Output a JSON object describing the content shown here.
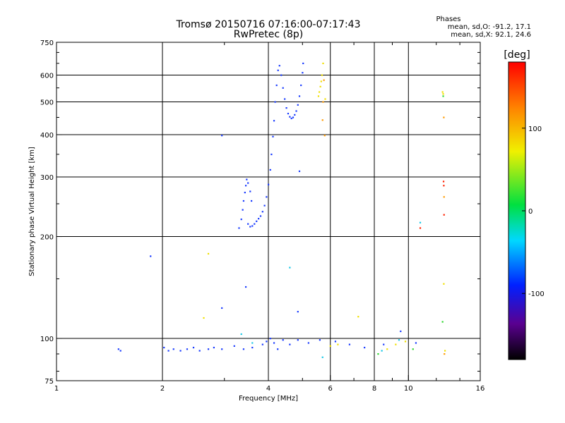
{
  "header": {
    "title_line1": "Tromsø 20150716 07:16:00-07:17:43",
    "title_line2": "RwPretec (8p)",
    "phase_label": "Phases",
    "phase_o": "mean, sd,O: -91.2, 17.1",
    "phase_x": "mean, sd,X:  92.1, 24.6"
  },
  "colors": {
    "axis": "#000000",
    "background": "#ffffff",
    "blue_trace": "#1a3cff",
    "yellow_trace": "#f0e000",
    "orange_trace": "#ff9a00",
    "red_trace": "#ff2000"
  },
  "chart_data": {
    "type": "scatter",
    "xlabel": "Frequency [MHz]",
    "ylabel": "Stationary phase Virtual Height [km]",
    "xscale": "log",
    "yscale": "log",
    "xlim": [
      1,
      16
    ],
    "ylim": [
      75,
      750
    ],
    "xticks": [
      1,
      2,
      4,
      6,
      8,
      10,
      16
    ],
    "xtick_labels": [
      "1",
      "2",
      "4",
      "6",
      "8",
      "10",
      "16"
    ],
    "yticks": [
      75,
      100,
      200,
      300,
      400,
      500,
      600,
      750
    ],
    "ytick_labels": [
      "75",
      "100",
      "200",
      "300",
      "400",
      "500",
      "600",
      "750"
    ],
    "grid": true,
    "colorbar": {
      "label": "[deg]",
      "range": [
        -180,
        180
      ],
      "ticks": [
        100,
        0,
        -100
      ],
      "tick_labels": [
        "100",
        "0",
        "-100"
      ]
    },
    "series": [
      {
        "color": "#1a3cff",
        "points": [
          [
            1.5,
            93
          ],
          [
            1.52,
            92
          ],
          [
            2.02,
            94
          ],
          [
            2.08,
            92
          ],
          [
            2.15,
            93
          ],
          [
            2.25,
            92
          ],
          [
            2.35,
            93
          ],
          [
            2.45,
            94
          ],
          [
            2.55,
            92
          ],
          [
            2.7,
            93
          ],
          [
            2.8,
            94
          ],
          [
            2.95,
            93
          ],
          [
            3.2,
            95
          ],
          [
            3.4,
            93
          ],
          [
            3.6,
            94
          ],
          [
            3.85,
            96
          ],
          [
            3.95,
            98
          ],
          [
            4.05,
            100
          ],
          [
            4.15,
            97
          ],
          [
            4.25,
            93
          ],
          [
            4.4,
            99
          ],
          [
            4.6,
            96
          ],
          [
            4.85,
            99
          ],
          [
            5.2,
            97
          ],
          [
            5.6,
            99
          ],
          [
            6.2,
            98
          ],
          [
            6.8,
            96
          ],
          [
            7.5,
            94
          ],
          [
            8.5,
            96
          ],
          [
            9.5,
            105
          ],
          [
            10.5,
            97
          ],
          [
            1.85,
            175
          ],
          [
            2.95,
            123
          ],
          [
            3.45,
            142
          ],
          [
            4.85,
            120
          ],
          [
            4.9,
            312
          ],
          [
            2.95,
            398
          ],
          [
            3.3,
            212
          ],
          [
            3.35,
            225
          ],
          [
            3.38,
            240
          ],
          [
            3.4,
            255
          ],
          [
            3.43,
            270
          ],
          [
            3.45,
            283
          ],
          [
            3.47,
            295
          ],
          [
            3.5,
            288
          ],
          [
            3.55,
            272
          ],
          [
            3.58,
            255
          ],
          [
            3.5,
            218
          ],
          [
            3.55,
            214
          ],
          [
            3.6,
            215
          ],
          [
            3.65,
            218
          ],
          [
            3.7,
            222
          ],
          [
            3.75,
            226
          ],
          [
            3.8,
            230
          ],
          [
            3.85,
            237
          ],
          [
            3.9,
            247
          ],
          [
            3.95,
            262
          ],
          [
            4.0,
            285
          ],
          [
            4.05,
            315
          ],
          [
            4.08,
            350
          ],
          [
            4.12,
            395
          ],
          [
            4.15,
            440
          ],
          [
            4.18,
            500
          ],
          [
            4.22,
            560
          ],
          [
            4.26,
            620
          ],
          [
            4.3,
            640
          ],
          [
            4.35,
            600
          ],
          [
            4.4,
            550
          ],
          [
            4.45,
            510
          ],
          [
            4.5,
            480
          ],
          [
            4.55,
            462
          ],
          [
            4.6,
            452
          ],
          [
            4.65,
            447
          ],
          [
            4.7,
            450
          ],
          [
            4.75,
            458
          ],
          [
            4.8,
            470
          ],
          [
            4.85,
            490
          ],
          [
            4.9,
            520
          ],
          [
            4.95,
            560
          ],
          [
            5.0,
            610
          ],
          [
            5.02,
            650
          ]
        ]
      },
      {
        "color": "#19c8e6",
        "points": [
          [
            3.35,
            103
          ],
          [
            3.6,
            97
          ],
          [
            4.6,
            162
          ],
          [
            5.7,
            88
          ],
          [
            8.4,
            92
          ],
          [
            9.4,
            99
          ],
          [
            10.8,
            220
          ]
        ]
      },
      {
        "color": "#f0e000",
        "points": [
          [
            2.62,
            115
          ],
          [
            2.7,
            178
          ],
          [
            5.55,
            520
          ],
          [
            5.58,
            535
          ],
          [
            5.62,
            555
          ],
          [
            5.65,
            575
          ],
          [
            5.68,
            600
          ],
          [
            5.72,
            650
          ],
          [
            5.8,
            510
          ],
          [
            6.0,
            95
          ],
          [
            6.3,
            96
          ],
          [
            7.2,
            116
          ],
          [
            8.7,
            93
          ],
          [
            9.2,
            96
          ],
          [
            9.8,
            98
          ],
          [
            12.5,
            535
          ],
          [
            12.55,
            528
          ],
          [
            12.6,
            145
          ],
          [
            12.7,
            92
          ]
        ]
      },
      {
        "color": "#ff9a00",
        "points": [
          [
            5.7,
            442
          ],
          [
            5.72,
            500
          ],
          [
            5.75,
            580
          ],
          [
            5.78,
            398
          ],
          [
            12.6,
            450
          ],
          [
            12.62,
            262
          ],
          [
            12.65,
            90
          ]
        ]
      },
      {
        "color": "#ff2000",
        "points": [
          [
            12.58,
            291
          ],
          [
            12.6,
            283
          ],
          [
            12.62,
            232
          ],
          [
            10.8,
            212
          ]
        ]
      },
      {
        "color": "#30d830",
        "points": [
          [
            12.5,
            112
          ],
          [
            12.55,
            520
          ],
          [
            8.2,
            90
          ],
          [
            10.3,
            93
          ]
        ]
      }
    ]
  }
}
